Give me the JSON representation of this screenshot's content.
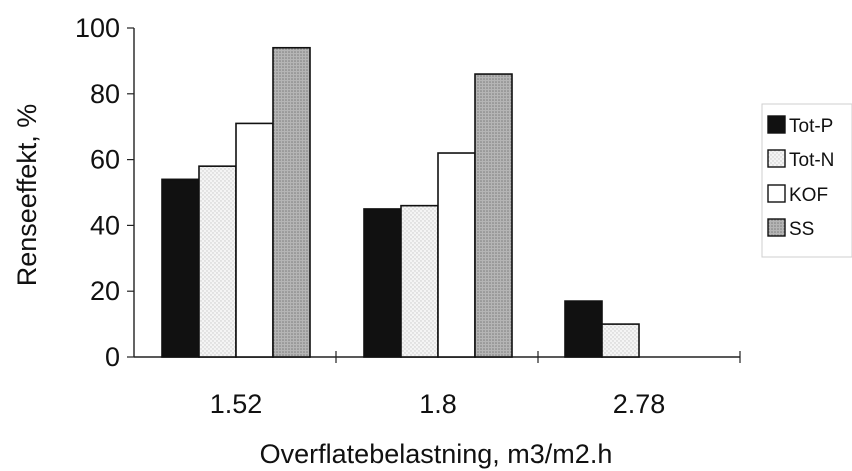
{
  "chart_data": {
    "type": "bar",
    "title": "",
    "xlabel": "Overflatebelastning, m3/m2.h",
    "ylabel": "Renseeffekt, %",
    "categories": [
      "1.52",
      "1.8",
      "2.78"
    ],
    "ylim": [
      0,
      100
    ],
    "yticks": [
      "0",
      "20",
      "40",
      "60",
      "80",
      "100"
    ],
    "grid": false,
    "legend_position": "right",
    "series": [
      {
        "name": "Tot-P",
        "values": [
          54,
          45,
          17
        ],
        "color": "#111111"
      },
      {
        "name": "Tot-N",
        "values": [
          58,
          46,
          10
        ],
        "color": "#f2f2f2"
      },
      {
        "name": "KOF",
        "values": [
          71,
          62,
          null
        ],
        "color": "#ffffff"
      },
      {
        "name": "SS",
        "values": [
          94,
          86,
          null
        ],
        "color": "#a9a9a9"
      }
    ]
  }
}
